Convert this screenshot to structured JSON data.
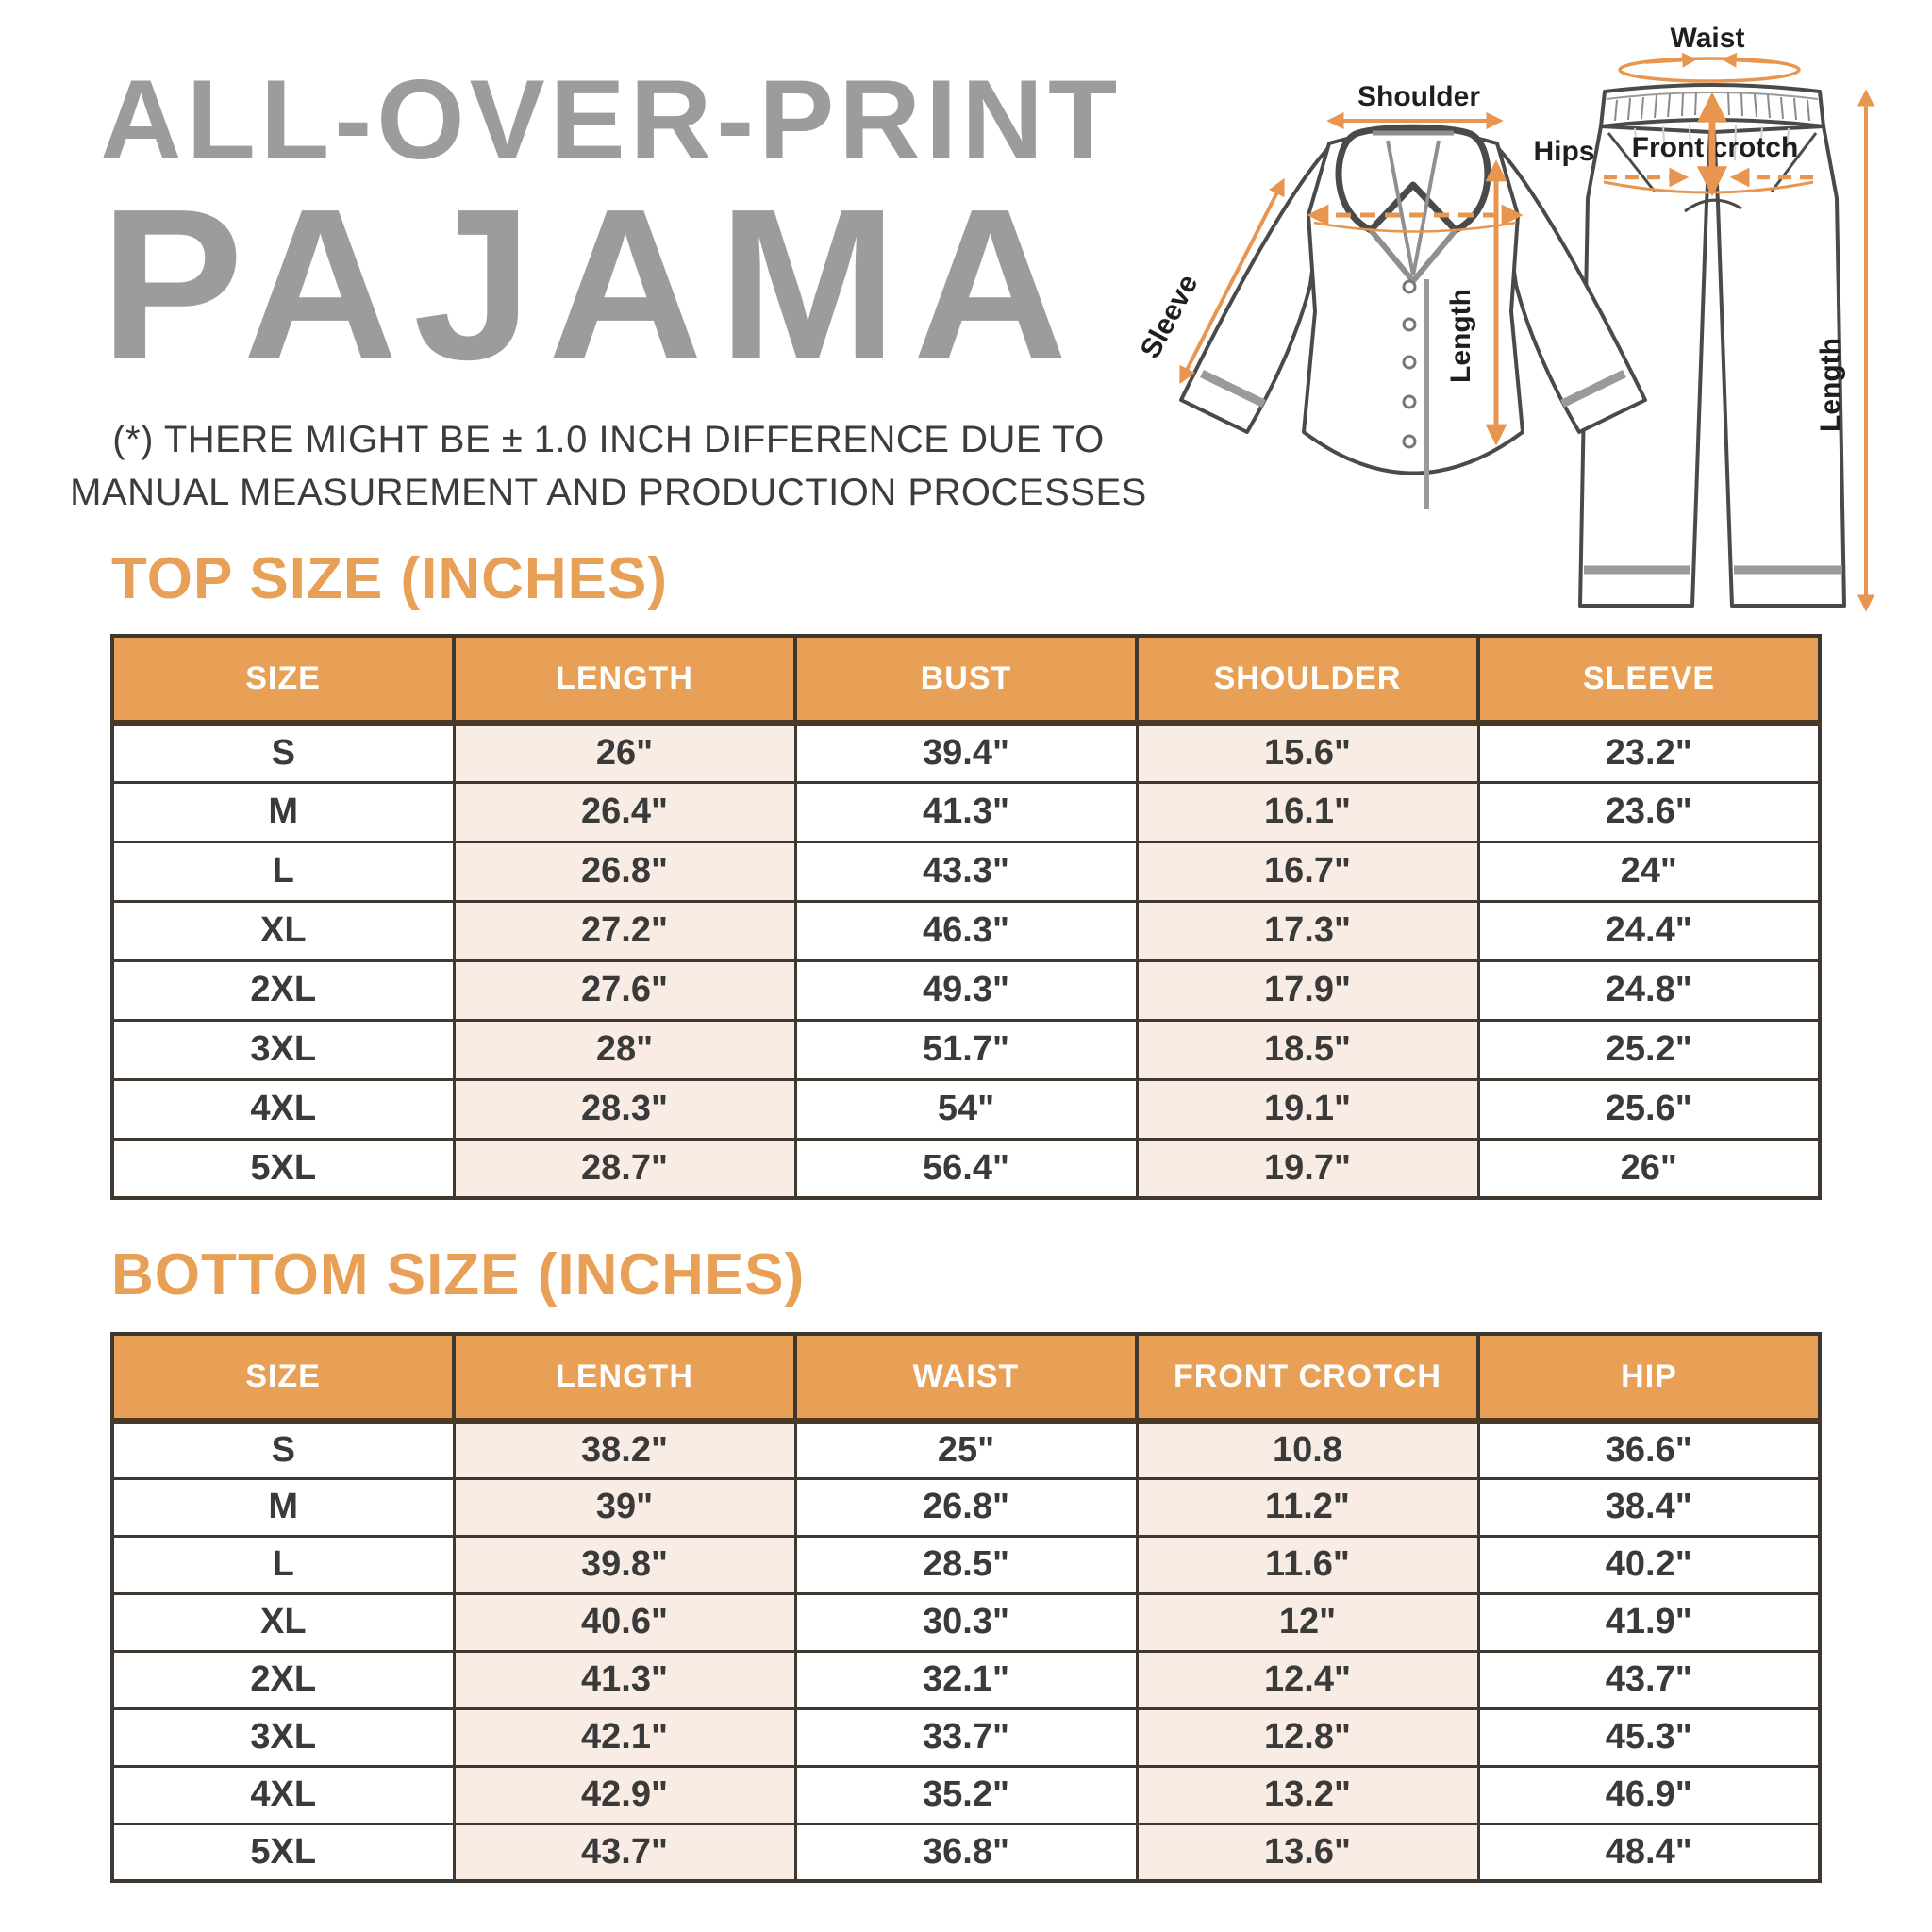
{
  "page": {
    "title_line1": "ALL-OVER-PRINT",
    "title_line2": "PAJAMA",
    "disclaimer_line1": "(*) THERE MIGHT BE ± 1.0 INCH DIFFERENCE DUE TO",
    "disclaimer_line2": "MANUAL MEASUREMENT AND PRODUCTION PROCESSES"
  },
  "diagram": {
    "labels": {
      "shoulder": "Shoulder",
      "sleeve": "Sleeve",
      "top_length": "Length",
      "waist": "Waist",
      "hips": "Hips",
      "front_crotch": "Front crotch",
      "bottom_length": "Length"
    }
  },
  "top_table": {
    "heading": "TOP SIZE (INCHES)",
    "columns": [
      "SIZE",
      "LENGTH",
      "BUST",
      "SHOULDER",
      "SLEEVE"
    ],
    "rows": [
      [
        "S",
        "26\"",
        "39.4\"",
        "15.6\"",
        "23.2\""
      ],
      [
        "M",
        "26.4\"",
        "41.3\"",
        "16.1\"",
        "23.6\""
      ],
      [
        "L",
        "26.8\"",
        "43.3\"",
        "16.7\"",
        "24\""
      ],
      [
        "XL",
        "27.2\"",
        "46.3\"",
        "17.3\"",
        "24.4\""
      ],
      [
        "2XL",
        "27.6\"",
        "49.3\"",
        "17.9\"",
        "24.8\""
      ],
      [
        "3XL",
        "28\"",
        "51.7\"",
        "18.5\"",
        "25.2\""
      ],
      [
        "4XL",
        "28.3\"",
        "54\"",
        "19.1\"",
        "25.6\""
      ],
      [
        "5XL",
        "28.7\"",
        "56.4\"",
        "19.7\"",
        "26\""
      ]
    ]
  },
  "bottom_table": {
    "heading": "BOTTOM SIZE (INCHES)",
    "columns": [
      "SIZE",
      "LENGTH",
      "WAIST",
      "FRONT CROTCH",
      "HIP"
    ],
    "rows": [
      [
        "S",
        "38.2\"",
        "25\"",
        "10.8",
        "36.6\""
      ],
      [
        "M",
        "39\"",
        "26.8\"",
        "11.2\"",
        "38.4\""
      ],
      [
        "L",
        "39.8\"",
        "28.5\"",
        "11.6\"",
        "40.2\""
      ],
      [
        "XL",
        "40.6\"",
        "30.3\"",
        "12\"",
        "41.9\""
      ],
      [
        "2XL",
        "41.3\"",
        "32.1\"",
        "12.4\"",
        "43.7\""
      ],
      [
        "3XL",
        "42.1\"",
        "33.7\"",
        "12.8\"",
        "45.3\""
      ],
      [
        "4XL",
        "42.9\"",
        "35.2\"",
        "13.2\"",
        "46.9\""
      ],
      [
        "5XL",
        "43.7\"",
        "36.8\"",
        "13.6\"",
        "48.4\""
      ]
    ]
  },
  "colors": {
    "accent_orange": "#E8A057",
    "arrow_orange": "#E8964F",
    "title_gray": "#9C9C9C",
    "shaded_cell": "#F8ECE4",
    "border_dark": "#3F3831",
    "header_underline": "#4A3927",
    "text_dark": "#3A3A3A"
  }
}
